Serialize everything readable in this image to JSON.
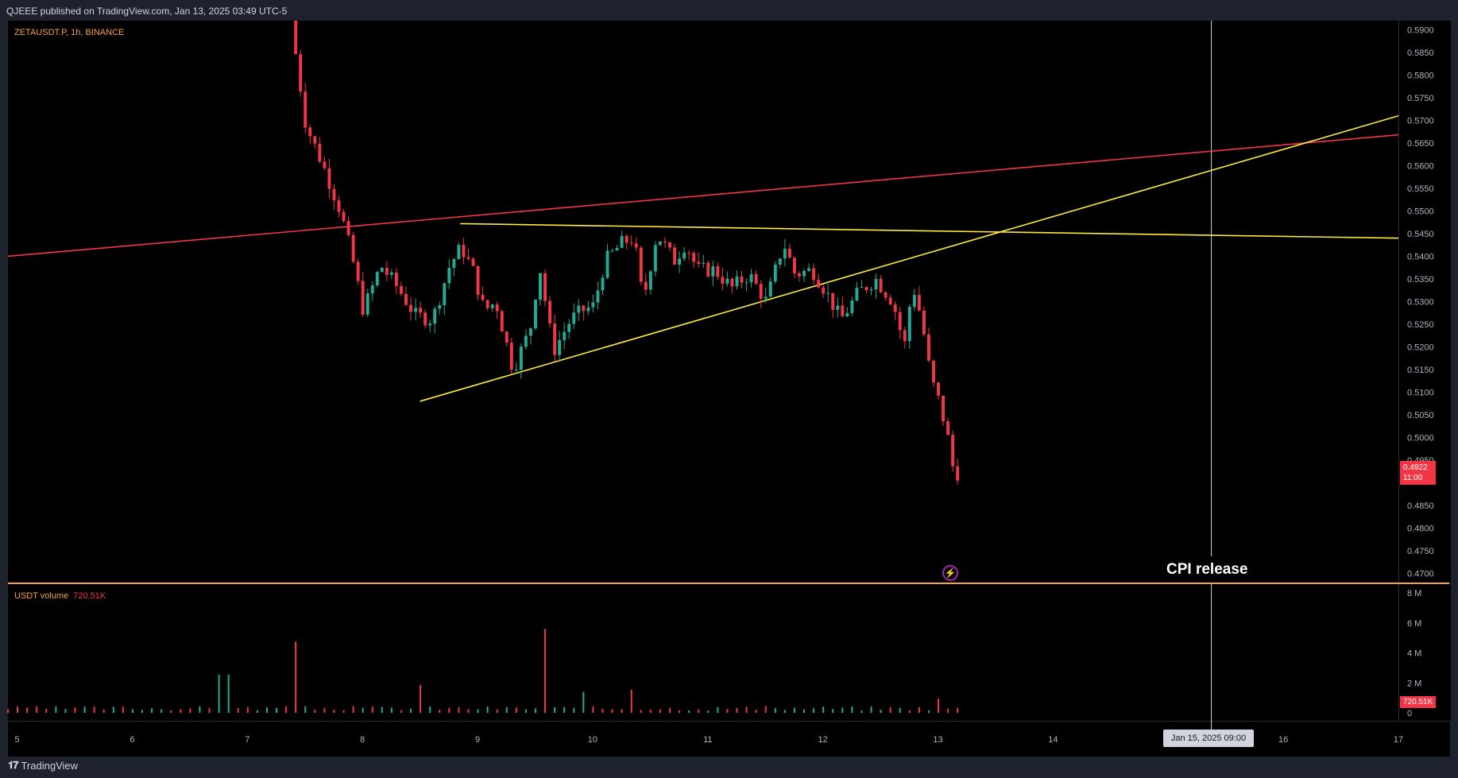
{
  "header": {
    "publish_text": "QJEEE published on TradingView.com, Jan 13, 2025 03:49 UTC-5"
  },
  "symbol_legend": "ZETAUSDT.P, 1h, BINANCE",
  "volume_legend": {
    "label": "USDT volume",
    "value": "720.51K"
  },
  "current_price": {
    "value": "0.4922",
    "countdown": "11:00"
  },
  "current_volume_label": "720.51K",
  "crosshair_date": "Jan 15, 2025   09:00",
  "annotation": {
    "text": "CPI release"
  },
  "footer": {
    "brand": "TradingView"
  },
  "colors": {
    "up": "#22ab94",
    "down": "#f23645",
    "support_line": "#ffeb3b",
    "resistance_line": "#f23645",
    "background": "#000000"
  },
  "chart_data": {
    "type": "candlestick",
    "symbol": "ZETAUSDT.P",
    "interval": "1h",
    "exchange": "BINANCE",
    "x_ticks": [
      "5",
      "6",
      "7",
      "8",
      "9",
      "10",
      "11",
      "12",
      "13",
      "14",
      "16",
      "17"
    ],
    "y_ticks": [
      "0.5900",
      "0.5850",
      "0.5800",
      "0.5750",
      "0.5700",
      "0.5650",
      "0.5600",
      "0.5550",
      "0.5500",
      "0.5450",
      "0.5400",
      "0.5350",
      "0.5300",
      "0.5250",
      "0.5200",
      "0.5150",
      "0.5100",
      "0.5050",
      "0.5000",
      "0.4950",
      "0.4850",
      "0.4800",
      "0.4750",
      "0.4700"
    ],
    "ylim": [
      0.468,
      0.592
    ],
    "volume_ticks": [
      "8 M",
      "6 M",
      "4 M",
      "2 M",
      "0"
    ],
    "volume_ylim": [
      0,
      8000000
    ],
    "xlim_day": [
      4.92,
      17.0
    ],
    "price_path": [
      [
        7.42,
        0.592
      ],
      [
        7.55,
        0.569
      ],
      [
        7.7,
        0.56
      ],
      [
        7.85,
        0.55
      ],
      [
        7.95,
        0.54
      ],
      [
        8.05,
        0.528
      ],
      [
        8.2,
        0.538
      ],
      [
        8.35,
        0.533
      ],
      [
        8.5,
        0.527
      ],
      [
        8.65,
        0.526
      ],
      [
        8.8,
        0.538
      ],
      [
        8.9,
        0.542
      ],
      [
        9.0,
        0.537
      ],
      [
        9.1,
        0.528
      ],
      [
        9.2,
        0.53
      ],
      [
        9.35,
        0.515
      ],
      [
        9.5,
        0.524
      ],
      [
        9.58,
        0.538
      ],
      [
        9.7,
        0.519
      ],
      [
        9.85,
        0.526
      ],
      [
        9.95,
        0.528
      ],
      [
        10.05,
        0.529
      ],
      [
        10.15,
        0.539
      ],
      [
        10.3,
        0.543
      ],
      [
        10.4,
        0.544
      ],
      [
        10.48,
        0.53
      ],
      [
        10.6,
        0.545
      ],
      [
        10.75,
        0.539
      ],
      [
        10.85,
        0.543
      ],
      [
        10.95,
        0.537
      ],
      [
        11.1,
        0.537
      ],
      [
        11.25,
        0.533
      ],
      [
        11.4,
        0.536
      ],
      [
        11.55,
        0.53
      ],
      [
        11.7,
        0.543
      ],
      [
        11.8,
        0.536
      ],
      [
        11.95,
        0.537
      ],
      [
        12.05,
        0.533
      ],
      [
        12.2,
        0.526
      ],
      [
        12.35,
        0.532
      ],
      [
        12.5,
        0.535
      ],
      [
        12.65,
        0.53
      ],
      [
        12.75,
        0.52
      ],
      [
        12.82,
        0.534
      ],
      [
        12.9,
        0.526
      ],
      [
        12.98,
        0.513
      ],
      [
        13.05,
        0.508
      ],
      [
        13.12,
        0.501
      ],
      [
        13.18,
        0.4922
      ]
    ],
    "volume_spikes": [
      {
        "day": 6.8,
        "value": 2550000,
        "dir": "up"
      },
      {
        "day": 7.42,
        "value": 4750000,
        "dir": "down"
      },
      {
        "day": 8.5,
        "value": 1850000,
        "dir": "down"
      },
      {
        "day": 9.58,
        "value": 5600000,
        "dir": "down"
      },
      {
        "day": 9.92,
        "value": 1400000,
        "dir": "up"
      },
      {
        "day": 10.33,
        "value": 1550000,
        "dir": "down"
      },
      {
        "day": 13.0,
        "value": 950000,
        "dir": "down"
      }
    ],
    "trendlines": [
      {
        "name": "resistance",
        "color": "red",
        "from": [
          4.92,
          0.54
        ],
        "to": [
          17.0,
          0.5668
        ]
      },
      {
        "name": "upper-flat",
        "color": "yellow",
        "from": [
          8.85,
          0.5472
        ],
        "to": [
          17.0,
          0.544
        ]
      },
      {
        "name": "rising-support",
        "color": "yellow",
        "from": [
          8.5,
          0.508
        ],
        "to": [
          17.0,
          0.571
        ]
      }
    ],
    "vertical_marker": {
      "day": 15.375,
      "label": "CPI release"
    }
  }
}
